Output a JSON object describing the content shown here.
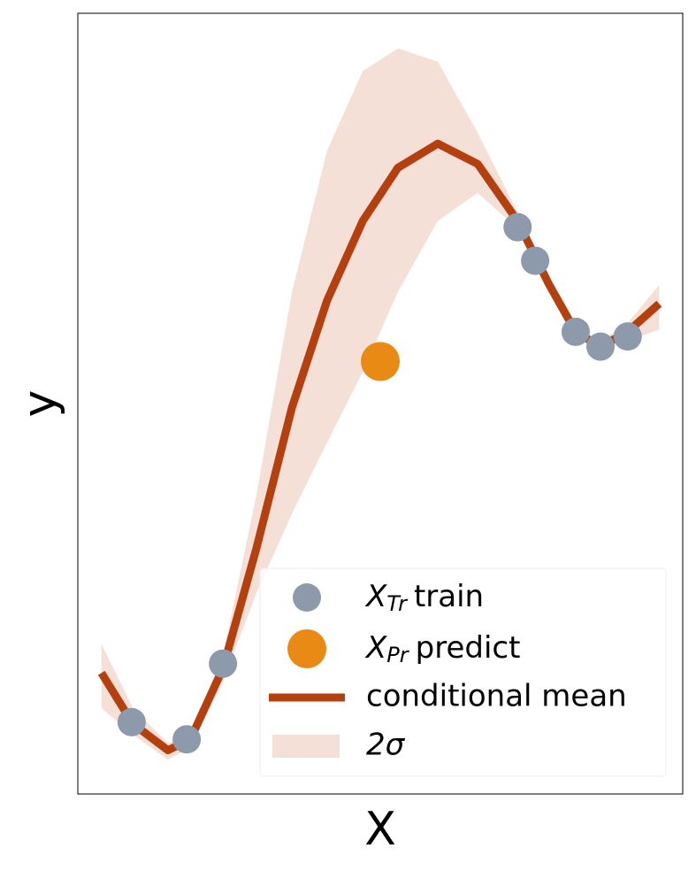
{
  "chart_data": {
    "type": "gp",
    "xlabel": "X",
    "ylabel": "y",
    "xlim": [
      0,
      10
    ],
    "ylim": [
      0,
      10
    ],
    "legend": "lower right",
    "train": {
      "symbol": "X",
      "subscript": "Tr",
      "name": "train",
      "color": "#8c9aab",
      "x": [
        0.89,
        1.8,
        2.4,
        7.27,
        7.56,
        8.23,
        8.64,
        9.09
      ],
      "values": [
        0.92,
        0.7,
        1.67,
        7.26,
        6.83,
        5.92,
        5.73,
        5.86
      ]
    },
    "predict": {
      "symbol": "X",
      "subscript": "Pr",
      "name": "predict",
      "color": "#e88a14",
      "x": [
        5.0
      ],
      "values": [
        5.54
      ]
    },
    "mean": {
      "name": "conditional mean",
      "color": "#b5400f",
      "x": [
        0.39,
        0.91,
        1.49,
        1.86,
        2.4,
        2.95,
        3.54,
        4.12,
        4.71,
        5.29,
        5.95,
        6.61,
        7.27,
        7.78,
        8.23,
        8.64,
        9.09,
        9.61
      ],
      "values": [
        1.55,
        0.9,
        0.56,
        0.7,
        1.61,
        3.14,
        4.95,
        6.32,
        7.34,
        8.02,
        8.33,
        8.07,
        7.34,
        6.54,
        5.92,
        5.73,
        5.92,
        6.28
      ]
    },
    "band": {
      "name": "2σ",
      "color": "#f5e0d8",
      "x": [
        0.39,
        0.91,
        1.49,
        1.86,
        2.4,
        2.95,
        3.54,
        4.12,
        4.71,
        5.29,
        5.95,
        6.61,
        7.27,
        7.78,
        8.23,
        8.64,
        9.09,
        9.61
      ],
      "upper": [
        1.92,
        1.1,
        0.65,
        0.78,
        1.78,
        3.82,
        6.43,
        8.24,
        9.26,
        9.55,
        9.38,
        8.47,
        7.45,
        6.6,
        5.98,
        5.8,
        6.03,
        6.52
      ],
      "lower": [
        1.1,
        0.76,
        0.44,
        0.59,
        1.44,
        2.57,
        3.59,
        4.5,
        5.41,
        6.43,
        7.34,
        7.7,
        7.24,
        6.49,
        5.88,
        5.66,
        5.8,
        5.95
      ]
    }
  }
}
